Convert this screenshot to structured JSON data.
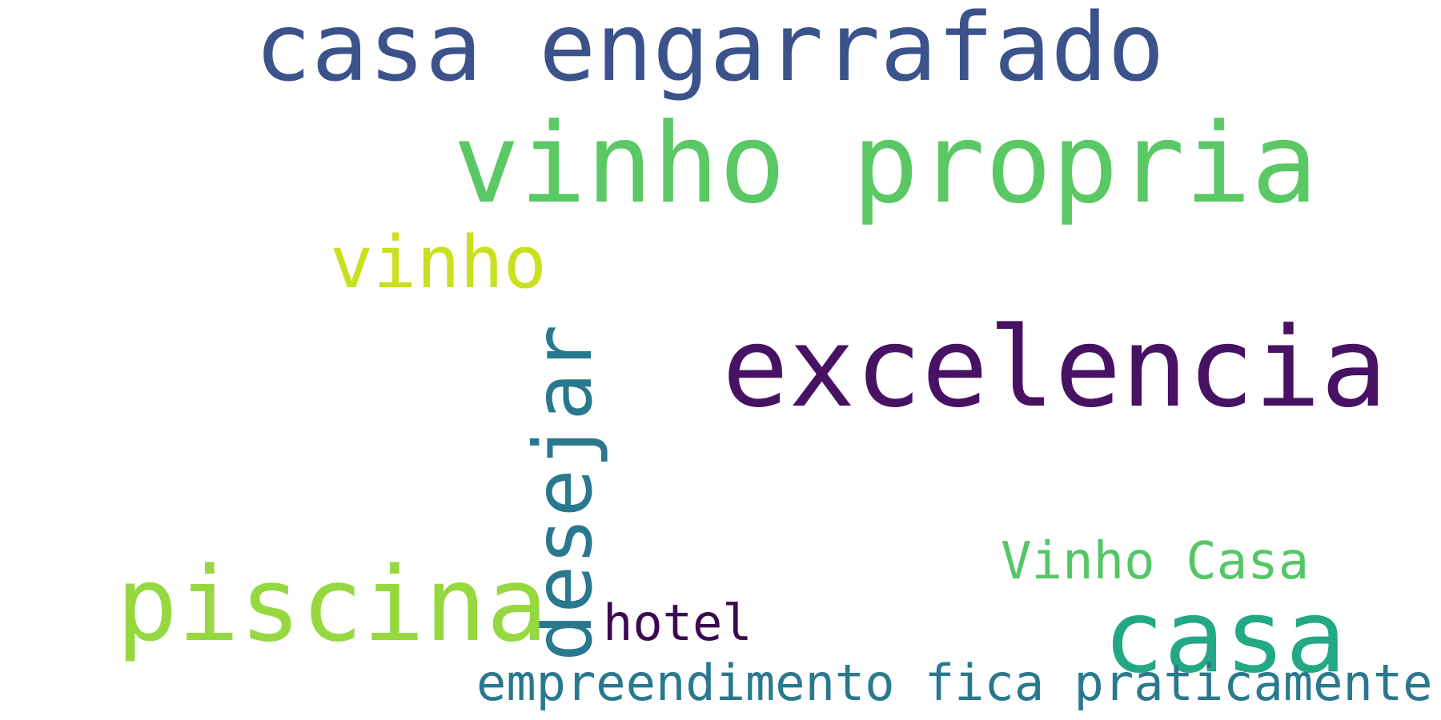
{
  "wordcloud": {
    "words": {
      "casa_engarrafado": "casa engarrafado",
      "vinho_propria": "vinho propria",
      "vinho": "vinho",
      "excelencia": "excelencia",
      "desejar": "desejar",
      "vinho_casa": "Vinho Casa",
      "piscina": "piscina",
      "hotel": "hotel",
      "casa": "casa",
      "empreendimento": "empreendimento fica praticamente"
    },
    "colors": {
      "casa_engarrafado": "#3b528b",
      "vinho_propria": "#5ac864",
      "vinho": "#c8e020",
      "excelencia": "#471164",
      "desejar": "#2a788e",
      "vinho_casa": "#55c667",
      "piscina": "#95d840",
      "hotel": "#3e0751",
      "casa": "#23a884",
      "empreendimento": "#2a788e"
    },
    "background": "#ffffff"
  }
}
